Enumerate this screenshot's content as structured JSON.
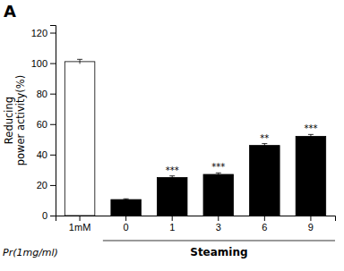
{
  "chart_data": {
    "type": "bar",
    "panel_label": "A",
    "categories": [
      "1mM",
      "0",
      "1",
      "3",
      "6",
      "9"
    ],
    "values": [
      101,
      10.5,
      25,
      27,
      46,
      52
    ],
    "errors": [
      1.5,
      0.5,
      1.0,
      1.0,
      1.2,
      1.2
    ],
    "colors": [
      "#ffffff",
      "#000000",
      "#000000",
      "#000000",
      "#000000",
      "#000000"
    ],
    "significance": [
      null,
      null,
      "***",
      "***",
      "**",
      "***"
    ],
    "ylabel": [
      "Reducing",
      "power activity(%)"
    ],
    "xlabel": "Pr(1mg/ml)",
    "group_label": "Steaming",
    "ylim": [
      0,
      125
    ],
    "yticks": [
      0,
      20,
      40,
      60,
      80,
      100,
      120
    ],
    "grid": false
  }
}
